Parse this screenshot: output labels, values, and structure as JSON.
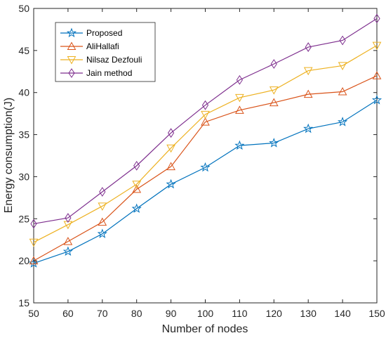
{
  "chart_data": {
    "type": "line",
    "xlabel": "Number of nodes",
    "ylabel": "Energy consumption(J)",
    "x": [
      50,
      60,
      70,
      80,
      90,
      100,
      110,
      120,
      130,
      140,
      150
    ],
    "xlim": [
      50,
      150
    ],
    "ylim": [
      15,
      50
    ],
    "xticks": [
      "50",
      "60",
      "70",
      "80",
      "90",
      "100",
      "110",
      "120",
      "130",
      "140",
      "150"
    ],
    "yticks": [
      "15",
      "20",
      "25",
      "30",
      "35",
      "40",
      "45",
      "50"
    ],
    "grid": false,
    "legend_position": "top-left",
    "series": [
      {
        "name": "Proposed",
        "color": "#0072BD",
        "marker": "star",
        "values": [
          19.7,
          21.1,
          23.2,
          26.2,
          29.1,
          31.1,
          33.7,
          34.0,
          35.7,
          36.5,
          39.1
        ]
      },
      {
        "name": "AliHallafi",
        "color": "#D95319",
        "marker": "triangle-up",
        "values": [
          20.0,
          22.3,
          24.6,
          28.5,
          31.2,
          36.5,
          37.9,
          38.8,
          39.8,
          40.1,
          42.0
        ]
      },
      {
        "name": "Nilsaz Dezfouli",
        "color": "#EDB120",
        "marker": "triangle-down",
        "values": [
          22.2,
          24.3,
          26.5,
          29.1,
          33.4,
          37.4,
          39.4,
          40.3,
          42.6,
          43.2,
          45.6
        ]
      },
      {
        "name": "Jain method",
        "color": "#7E2F8E",
        "marker": "diamond",
        "values": [
          24.4,
          25.1,
          28.2,
          31.3,
          35.2,
          38.5,
          41.5,
          43.4,
          45.4,
          46.2,
          48.8
        ]
      }
    ]
  }
}
